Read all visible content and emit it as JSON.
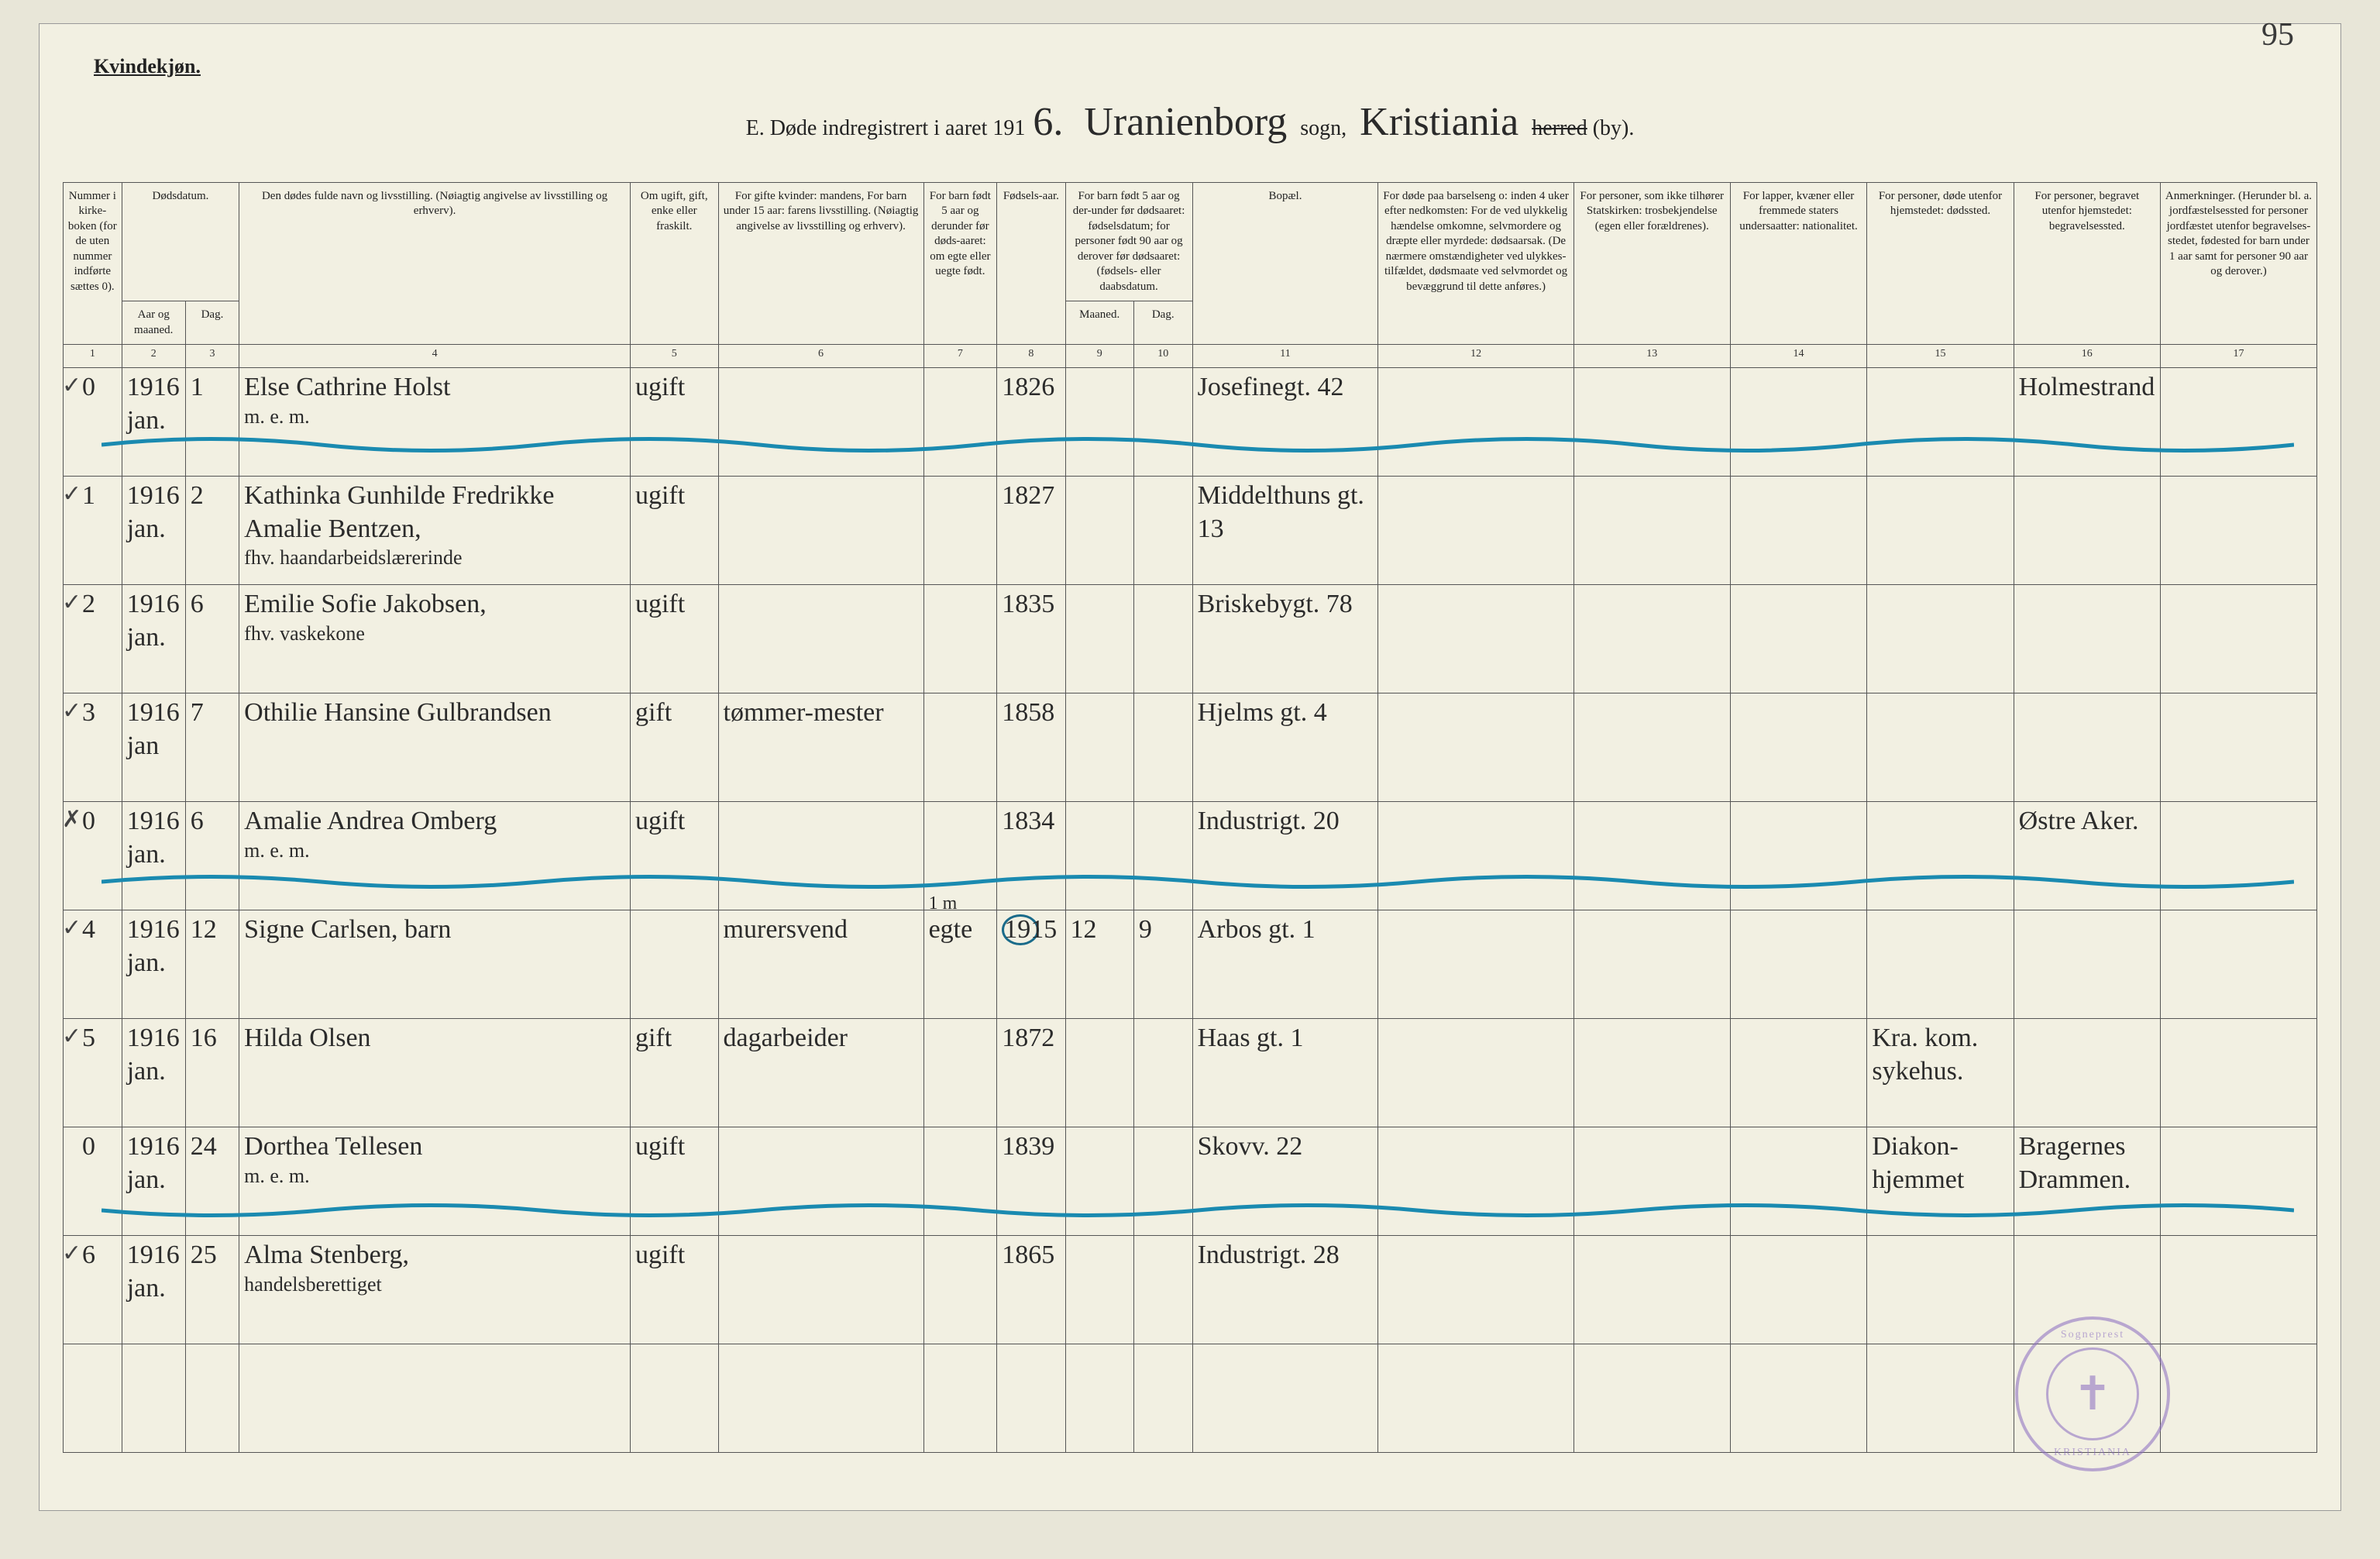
{
  "page_number": "95",
  "corner_title": "Kvindekjøn.",
  "header": {
    "prefix": "E.  Døde indregistrert i aaret 191",
    "year_digit": "6.",
    "sogn_value": "Uranienborg",
    "sogn_label": "sogn,",
    "herred_value": "Kristiania",
    "herred_struck": "herred",
    "herred_suffix": "(by)."
  },
  "columns": {
    "c1": "Nummer i kirke-boken (for de uten nummer indførte sættes 0).",
    "c2": "Aar og maaned.",
    "c3": "Dag.",
    "c2_3_top": "Dødsdatum.",
    "c4": "Den dødes fulde navn og livsstilling.\n(Nøiagtig angivelse av livsstilling og erhverv).",
    "c5": "Om ugift, gift, enke eller fraskilt.",
    "c6": "For gifte kvinder: mandens,\nFor barn under 15 aar: farens livsstilling.\n(Nøiagtig angivelse av livsstilling og erhverv).",
    "c7": "For barn født 5 aar og derunder før døds-aaret: om egte eller uegte født.",
    "c8": "Fødsels-aar.",
    "c9_10_top": "For barn født 5 aar og der-under før dødsaaret: fødselsdatum; for personer født 90 aar og derover før dødsaaret: (fødsels- eller daabsdatum.",
    "c9": "Maaned.",
    "c10": "Dag.",
    "c11": "Bopæl.",
    "c12": "For døde paa barselseng o: inden 4 uker efter nedkomsten:\nFor de ved ulykkelig hændelse omkomne, selvmordere og dræpte eller myrdede: dødsaarsak.\n(De nærmere omstændigheter ved ulykkes-tilfældet, dødsmaate ved selvmordet og bevæggrund til dette anføres.)",
    "c13": "For personer, som ikke tilhører Statskirken: trosbekjendelse (egen eller forældrenes).",
    "c14": "For lapper, kvæner eller fremmede staters undersaatter: nationalitet.",
    "c15": "For personer, døde utenfor hjemstedet: dødssted.",
    "c16": "For personer, begravet utenfor hjemstedet: begravelsessted.",
    "c17": "Anmerkninger.\n(Herunder bl. a. jordfæstelsessted for personer jordfæstet utenfor begravelses-stedet, fødested for barn under 1 aar samt for personer 90 aar og derover.)"
  },
  "colnums": [
    "1",
    "2",
    "3",
    "4",
    "5",
    "6",
    "7",
    "8",
    "9",
    "10",
    "11",
    "12",
    "13",
    "14",
    "15",
    "16",
    "17"
  ],
  "rows": [
    {
      "check": "✓",
      "num": "0",
      "ym": "1916 jan.",
      "day": "1",
      "name": "Else Cathrine Holst",
      "name_sub": "m. e. m.",
      "status": "ugift",
      "col6": "",
      "c7": "",
      "birth": "1826",
      "c9": "",
      "c10": "",
      "bopael": "Josefinegt. 42",
      "c15": "",
      "c16": "Holmestrand"
    },
    {
      "check": "✓",
      "num": "1",
      "ym": "1916 jan.",
      "day": "2",
      "name": "Kathinka Gunhilde Fredrikke Amalie Bentzen,",
      "name_sub": "fhv. haandarbeidslærerinde",
      "status": "ugift",
      "col6": "",
      "c7": "",
      "birth": "1827",
      "c9": "",
      "c10": "",
      "bopael": "Middelthuns gt. 13",
      "c15": "",
      "c16": ""
    },
    {
      "check": "✓",
      "num": "2",
      "ym": "1916 jan.",
      "day": "6",
      "name": "Emilie Sofie Jakobsen,",
      "name_sub": "fhv. vaskekone",
      "status": "ugift",
      "col6": "",
      "c7": "",
      "birth": "1835",
      "c9": "",
      "c10": "",
      "bopael": "Briskebygt. 78",
      "c15": "",
      "c16": ""
    },
    {
      "check": "✓",
      "num": "3",
      "ym": "1916 jan",
      "day": "7",
      "name": "Othilie Hansine Gulbrandsen",
      "name_sub": "",
      "status": "gift",
      "col6": "tømmer-mester",
      "c7": "",
      "birth": "1858",
      "c9": "",
      "c10": "",
      "bopael": "Hjelms gt. 4",
      "c15": "",
      "c16": ""
    },
    {
      "check": "✗",
      "num": "0",
      "ym": "1916 jan.",
      "day": "6",
      "name": "Amalie Andrea Omberg",
      "name_sub": "m. e. m.",
      "status": "ugift",
      "col6": "",
      "c7": "",
      "birth": "1834",
      "c9": "",
      "c10": "",
      "bopael": "Industrigt. 20",
      "c15": "",
      "c16": "Østre Aker."
    },
    {
      "check": "✓",
      "num": "4",
      "ym": "1916 jan.",
      "day": "12",
      "name": "Signe Carlsen, barn",
      "name_sub": "",
      "status": "",
      "col6": "murersvend",
      "c7": "egte",
      "birth": "1915",
      "c9": "12",
      "c10": "9",
      "bopael": "Arbos gt. 1",
      "c15": "",
      "c16": ""
    },
    {
      "check": "✓",
      "num": "5",
      "ym": "1916 jan.",
      "day": "16",
      "name": "Hilda Olsen",
      "name_sub": "",
      "status": "gift",
      "col6": "dagarbeider",
      "c7": "",
      "birth": "1872",
      "c9": "",
      "c10": "",
      "bopael": "Haas gt. 1",
      "c15": "Kra. kom. sykehus.",
      "c16": ""
    },
    {
      "check": "",
      "num": "0",
      "ym": "1916 jan.",
      "day": "24",
      "name": "Dorthea Tellesen",
      "name_sub": "m. e. m.",
      "status": "ugift",
      "col6": "",
      "c7": "",
      "birth": "1839",
      "c9": "",
      "c10": "",
      "bopael": "Skovv. 22",
      "c15": "Diakon-hjemmet",
      "c16": "Bragernes Drammen."
    },
    {
      "check": "✓",
      "num": "6",
      "ym": "1916 jan.",
      "day": "25",
      "name": "Alma Stenberg,",
      "name_sub": "handelsberettiget",
      "status": "ugift",
      "col6": "",
      "c7": "",
      "birth": "1865",
      "c9": "",
      "c10": "",
      "bopael": "Industrigt. 28",
      "c15": "",
      "c16": ""
    },
    {
      "check": "",
      "num": "",
      "ym": "",
      "day": "",
      "name": "",
      "name_sub": "",
      "status": "",
      "col6": "",
      "c7": "",
      "birth": "",
      "c9": "",
      "c10": "",
      "bopael": "",
      "c15": "",
      "c16": ""
    }
  ],
  "annotations": {
    "row6_note": "1 m",
    "wave_color": "#1a8ab0",
    "stamp_color": "#8a6bc0",
    "stamp_text_top": "Sogneprest",
    "stamp_text_bot": "KRISTIANIA",
    "stamp_cross": "✝"
  }
}
